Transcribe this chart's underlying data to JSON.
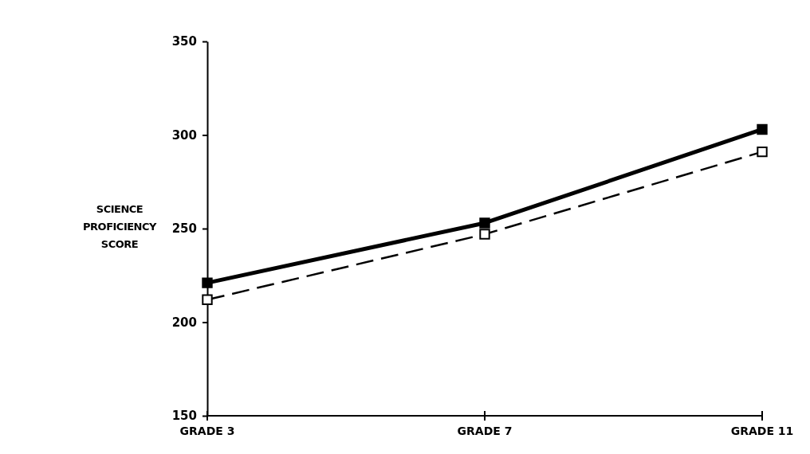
{
  "chart_data": {
    "type": "line",
    "ylabel": "SCIENCE PROFICIENCY SCORE",
    "categories": [
      "GRADE 3",
      "GRADE 7",
      "GRADE 11"
    ],
    "series": [
      {
        "color": "#000000",
        "values": [
          221,
          253,
          303
        ],
        "line_style": "solid",
        "marker": "square"
      },
      {
        "color": "#000000",
        "values": [
          212,
          247,
          291
        ],
        "line_style": "dashed",
        "marker": "square"
      }
    ],
    "ylim": [
      150,
      350
    ],
    "yticks": [
      150,
      200,
      250,
      300,
      350
    ],
    "grid": false
  }
}
